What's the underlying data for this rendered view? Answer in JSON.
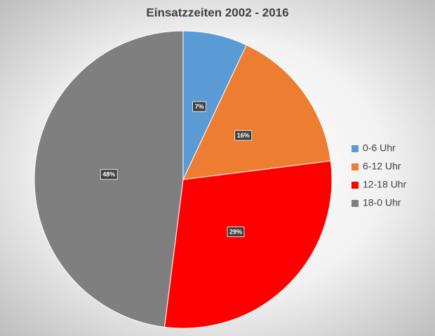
{
  "chart_data": {
    "type": "pie",
    "title": "Einsatzzeiten 2002 - 2016",
    "categories": [
      "0-6 Uhr",
      "6-12 Uhr",
      "12-18 Uhr",
      "18-0 Uhr"
    ],
    "values": [
      7,
      16,
      29,
      48
    ],
    "value_labels": [
      "7%",
      "16%",
      "29%",
      "48%"
    ],
    "colors": [
      "#5b9bd5",
      "#ed7d31",
      "#ff0000",
      "#7f7f7f"
    ],
    "legend": "right"
  }
}
